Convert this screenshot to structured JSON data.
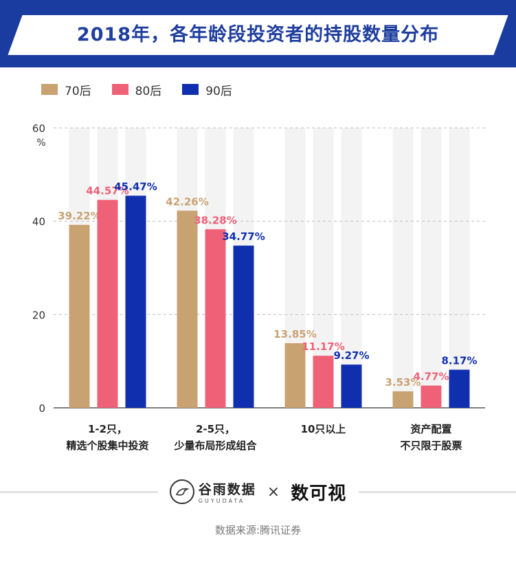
{
  "title": "2018年，各年龄段投资者的持股数量分布",
  "chart_data": {
    "type": "bar",
    "categories": [
      [
        "1-2只，",
        "精选个股集中投资"
      ],
      [
        "2-5只，",
        "少量布局形成组合"
      ],
      [
        "10只以上"
      ],
      [
        "资产配置",
        "不只限于股票"
      ]
    ],
    "series": [
      {
        "name": "70后",
        "color": "#c9a272",
        "values": [
          39.22,
          42.26,
          13.85,
          3.53
        ],
        "labels": [
          "39.22%",
          "42.26%",
          "13.85%",
          "3.53%"
        ]
      },
      {
        "name": "80后",
        "color": "#ef6177",
        "values": [
          44.57,
          38.28,
          11.17,
          4.77
        ],
        "labels": [
          "44.57%",
          "38.28%",
          "11.17%",
          "4.77%"
        ]
      },
      {
        "name": "90后",
        "color": "#0f2fae",
        "values": [
          45.47,
          34.77,
          9.27,
          8.17
        ],
        "labels": [
          "45.47%",
          "34.77%",
          "9.27%",
          "8.17%"
        ]
      }
    ],
    "ylim": [
      0,
      60
    ],
    "yticks": [
      0,
      20,
      40,
      60
    ],
    "yunit": "%",
    "grid": true,
    "legend": "top-left"
  },
  "footer": {
    "brand1": "谷雨数据",
    "brand1_sub": "GUYUDATA",
    "times": "×",
    "brand2": "数可视"
  },
  "source": "数据来源:腾讯证券",
  "colors": {
    "header": "#1a3ba0",
    "title_text": "#1f3e9e"
  }
}
